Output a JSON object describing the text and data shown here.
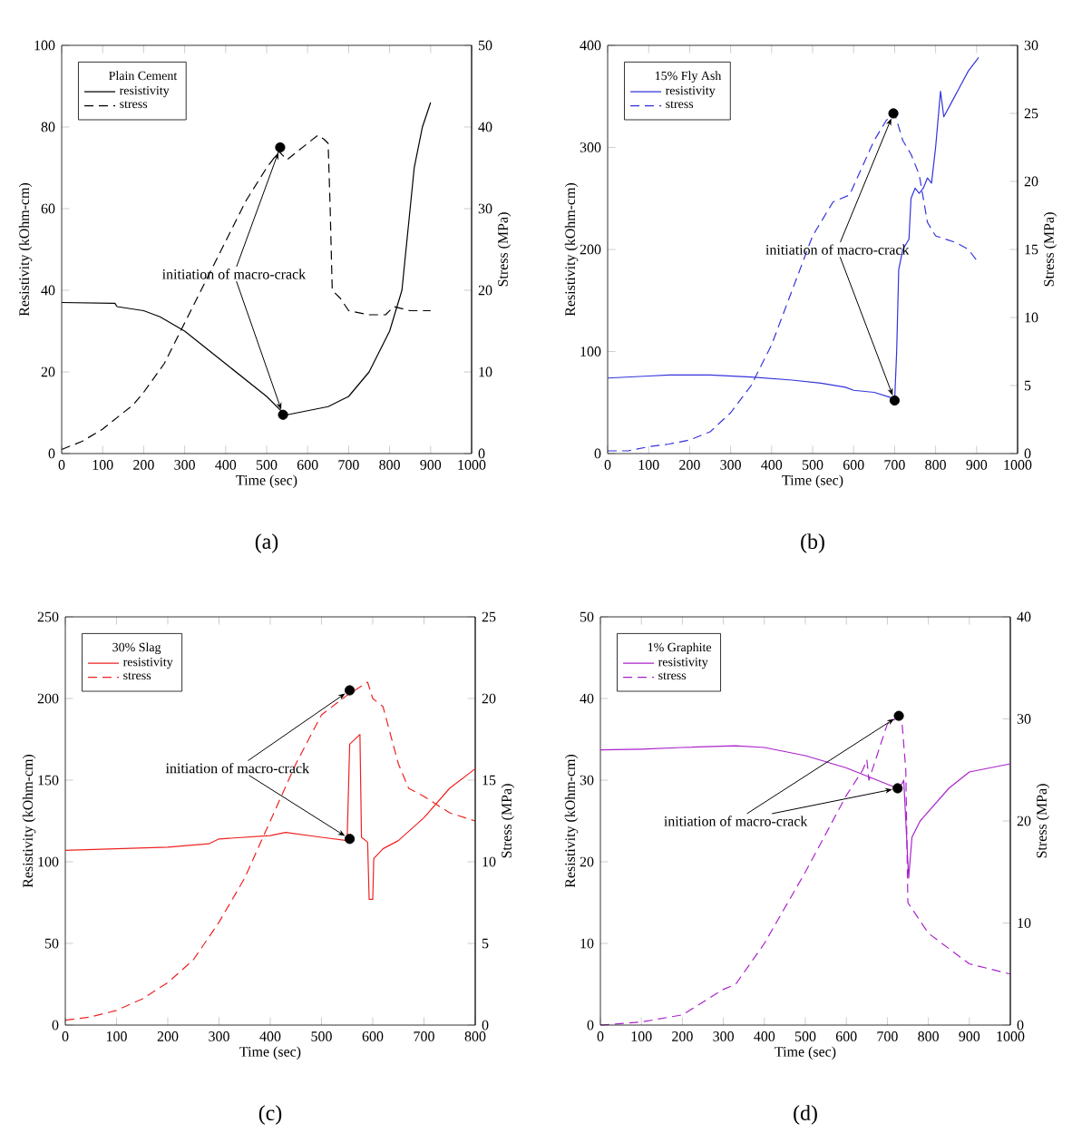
{
  "chart_data": [
    {
      "type": "line",
      "legend_title": "Plain Cement",
      "xlabel": "Time (sec)",
      "ylabel": "Resistivity (kOhm-cm)",
      "y2label": "Stress (MPa)",
      "xlim": [
        0,
        1000
      ],
      "ylim": [
        0,
        100
      ],
      "y2lim": [
        0,
        50
      ],
      "xticks": [
        0,
        100,
        200,
        300,
        400,
        500,
        600,
        700,
        800,
        900,
        1000
      ],
      "yticks": [
        0,
        20,
        40,
        60,
        80,
        100
      ],
      "y2ticks": [
        0,
        10,
        20,
        30,
        40,
        50
      ],
      "legend": "top left",
      "series": [
        {
          "name": "resistivity",
          "color": "#000000",
          "line_style": "solid",
          "x": [
            0,
            130,
            135,
            200,
            240,
            300,
            400,
            500,
            540,
            550,
            600,
            650,
            700,
            750,
            800,
            830,
            845,
            860,
            880,
            900
          ],
          "values": [
            37,
            36.8,
            36,
            35,
            33.5,
            30,
            22,
            14,
            10,
            9.5,
            10.5,
            11.5,
            14,
            20,
            30,
            40,
            55,
            70,
            80,
            86
          ]
        },
        {
          "name": "stress",
          "color": "#000000",
          "line_style": "dashed",
          "axis": "y2",
          "x": [
            0,
            50,
            100,
            150,
            175,
            200,
            250,
            300,
            350,
            400,
            450,
            500,
            530,
            550,
            600,
            625,
            640,
            650,
            655,
            660,
            680,
            700,
            750,
            790,
            810,
            850,
            900
          ],
          "values": [
            0.5,
            1.5,
            3,
            5,
            6,
            7.5,
            11,
            16,
            21,
            26,
            31,
            35,
            37,
            36,
            38,
            39,
            38.5,
            38,
            30,
            20,
            19,
            17.5,
            17,
            17,
            18,
            17.5,
            17.5
          ]
        },
        {
          "type": "scatter",
          "marker": "circle",
          "color": "#000000",
          "x": [
            540
          ],
          "values": [
            9.5
          ]
        },
        {
          "type": "scatter",
          "marker": "circle",
          "color": "#000000",
          "axis": "y2",
          "x": [
            533
          ],
          "values": [
            37.5
          ]
        }
      ],
      "annotations": [
        {
          "text": "initiation of macro-crack",
          "x": 540,
          "y": 9.5
        },
        "(a)"
      ]
    },
    {
      "type": "line",
      "legend_title": "15% Fly Ash",
      "xlabel": "Time (sec)",
      "ylabel": "Resistivity (kOhm-cm)",
      "y2label": "Stress (MPa)",
      "xlim": [
        0,
        1000
      ],
      "ylim": [
        0,
        400
      ],
      "y2lim": [
        0,
        30
      ],
      "xticks": [
        0,
        100,
        200,
        300,
        400,
        500,
        600,
        700,
        800,
        900,
        1000
      ],
      "yticks": [
        0,
        100,
        200,
        300,
        400
      ],
      "y2ticks": [
        0,
        5,
        10,
        15,
        20,
        25,
        30
      ],
      "legend": "top left",
      "series": [
        {
          "name": "resistivity",
          "color": "#3333dd",
          "line_style": "solid",
          "x": [
            0,
            100,
            150,
            250,
            350,
            450,
            520,
            580,
            600,
            650,
            690,
            700,
            705,
            710,
            720,
            735,
            740,
            750,
            760,
            770,
            780,
            790,
            800,
            812,
            820,
            840,
            860,
            880,
            905
          ],
          "values": [
            74,
            76,
            77,
            77,
            75,
            72,
            69,
            65,
            62,
            60,
            55,
            51,
            100,
            180,
            200,
            210,
            250,
            260,
            255,
            260,
            270,
            265,
            300,
            355,
            330,
            345,
            360,
            375,
            388
          ]
        },
        {
          "name": "stress",
          "color": "#3333dd",
          "line_style": "dashed",
          "axis": "y2",
          "x": [
            0,
            50,
            100,
            150,
            200,
            250,
            300,
            350,
            400,
            450,
            500,
            550,
            590,
            620,
            650,
            680,
            700,
            720,
            740,
            760,
            780,
            800,
            850,
            880,
            905
          ],
          "values": [
            0.2,
            0.2,
            0.5,
            0.7,
            1,
            1.6,
            3,
            5,
            8,
            12,
            16,
            18.5,
            19,
            21,
            23,
            24.5,
            25,
            23,
            22,
            20.5,
            17,
            16,
            15.5,
            15,
            14
          ]
        },
        {
          "type": "scatter",
          "marker": "circle",
          "color": "#000000",
          "x": [
            700
          ],
          "values": [
            52
          ]
        },
        {
          "type": "scatter",
          "marker": "circle",
          "color": "#000000",
          "axis": "y2",
          "x": [
            697
          ],
          "values": [
            25
          ]
        }
      ],
      "annotations": [
        {
          "text": "initiation of macro-crack",
          "x": 700,
          "y": 52
        },
        "(b)"
      ]
    },
    {
      "type": "line",
      "legend_title": "30% Slag",
      "xlabel": "Time (sec)",
      "ylabel": "Resistivity (kOhm-cm)",
      "y2label": "Stress (MPa)",
      "xlim": [
        0,
        800
      ],
      "ylim": [
        0,
        250
      ],
      "y2lim": [
        0,
        25
      ],
      "xticks": [
        0,
        100,
        200,
        300,
        400,
        500,
        600,
        700,
        800
      ],
      "yticks": [
        0,
        50,
        100,
        150,
        200,
        250
      ],
      "y2ticks": [
        0,
        5,
        10,
        15,
        20,
        25
      ],
      "legend": "top left",
      "series": [
        {
          "name": "resistivity",
          "color": "#ee2222",
          "line_style": "solid",
          "x": [
            0,
            100,
            200,
            280,
            300,
            400,
            430,
            500,
            550,
            555,
            575,
            578,
            590,
            593,
            600,
            602,
            620,
            650,
            700,
            750,
            800
          ],
          "values": [
            107,
            108,
            109,
            111,
            114,
            116,
            118,
            115,
            113,
            172,
            178,
            115,
            112,
            77,
            77,
            102,
            108,
            113,
            127,
            145,
            157
          ]
        },
        {
          "name": "stress",
          "color": "#ee2222",
          "line_style": "dashed",
          "axis": "y2",
          "x": [
            0,
            50,
            100,
            150,
            200,
            250,
            300,
            350,
            400,
            450,
            500,
            550,
            590,
            600,
            620,
            650,
            670,
            700,
            750,
            800
          ],
          "values": [
            0.3,
            0.5,
            0.9,
            1.6,
            2.6,
            4,
            6.3,
            9,
            12.5,
            16,
            19,
            20.2,
            21,
            20,
            19.5,
            16,
            14.5,
            14,
            13,
            12.5
          ]
        },
        {
          "type": "scatter",
          "marker": "circle",
          "color": "#000000",
          "x": [
            555
          ],
          "values": [
            114
          ]
        },
        {
          "type": "scatter",
          "marker": "circle",
          "color": "#000000",
          "axis": "y2",
          "x": [
            555
          ],
          "values": [
            20.5
          ]
        }
      ],
      "annotations": [
        {
          "text": "initiation of macro-crack",
          "x": 555,
          "y": 114
        },
        "(c)"
      ]
    },
    {
      "type": "line",
      "legend_title": "1% Graphite",
      "xlabel": "Time (sec)",
      "ylabel": "Resistivity (kOhm-cm)",
      "y2label": "Stress (MPa)",
      "xlim": [
        0,
        1000
      ],
      "ylim": [
        0,
        50
      ],
      "y2lim": [
        0,
        40
      ],
      "xticks": [
        0,
        100,
        200,
        300,
        400,
        500,
        600,
        700,
        800,
        900,
        1000
      ],
      "yticks": [
        0,
        10,
        20,
        30,
        40,
        50
      ],
      "y2ticks": [
        0,
        10,
        20,
        30,
        40
      ],
      "legend": "top left",
      "series": [
        {
          "name": "resistivity",
          "color": "#aa22cc",
          "line_style": "solid",
          "x": [
            0,
            100,
            200,
            330,
            400,
            500,
            600,
            700,
            725,
            735,
            740,
            745,
            752,
            760,
            780,
            850,
            900,
            1000
          ],
          "values": [
            33.7,
            33.8,
            34,
            34.2,
            34,
            33,
            31.5,
            29.5,
            29,
            29.5,
            30,
            25,
            18,
            23,
            25,
            29,
            31,
            32
          ]
        },
        {
          "name": "stress",
          "color": "#aa22cc",
          "line_style": "dashed",
          "axis": "y2",
          "x": [
            0,
            100,
            200,
            300,
            330,
            400,
            500,
            600,
            640,
            650,
            655,
            700,
            720,
            735,
            745,
            750,
            800,
            900,
            1000
          ],
          "values": [
            0,
            0.3,
            1,
            3.5,
            4,
            8,
            15,
            22.5,
            25,
            26,
            24,
            29.5,
            30,
            30,
            25,
            12,
            9,
            6,
            5
          ]
        },
        {
          "type": "scatter",
          "marker": "circle",
          "color": "#000000",
          "x": [
            725
          ],
          "values": [
            29
          ]
        },
        {
          "type": "scatter",
          "marker": "circle",
          "color": "#000000",
          "axis": "y2",
          "x": [
            728
          ],
          "values": [
            30.3
          ]
        }
      ],
      "annotations": [
        {
          "text": "initiation of macro-crack",
          "x": 725,
          "y": 29
        },
        "(d)"
      ]
    }
  ]
}
